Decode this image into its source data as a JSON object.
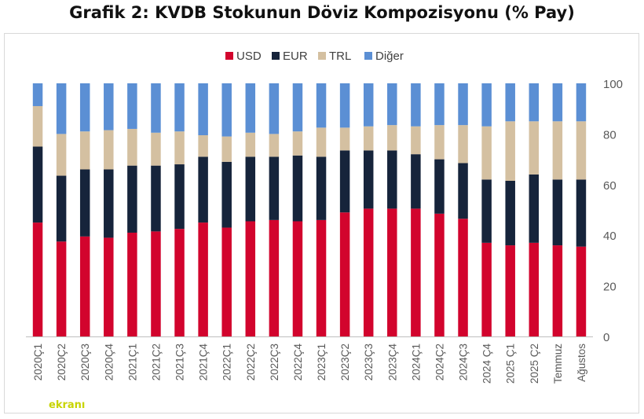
{
  "chart_data": {
    "type": "bar",
    "stacked": true,
    "title": "Grafik 2: KVDB Stokunun Döviz Kompozisyonu (% Pay)",
    "xlabel": "",
    "ylabel": "",
    "ylim": [
      0,
      100
    ],
    "yticks": [
      0,
      20,
      40,
      60,
      80,
      100
    ],
    "legend_position": "top",
    "grid": false,
    "categories": [
      "2020Ç1",
      "2020Ç2",
      "2020Ç3",
      "2020Ç4",
      "2021Ç1",
      "2021Ç2",
      "2021Ç3",
      "2021Ç4",
      "2022Ç1",
      "2022Ç2",
      "2022Ç3",
      "2022Ç4",
      "2023Ç1",
      "2023Ç2",
      "2023Ç3",
      "2023Ç4",
      "2024Ç1",
      "2024Ç2",
      "2024Ç3",
      "2024 Ç4",
      "2025 Ç1",
      "2025 Ç2",
      "Temmuz",
      "Ağustos"
    ],
    "series": [
      {
        "name": "USD",
        "color": "#d2042d",
        "values": [
          45,
          37.5,
          39.5,
          39,
          41,
          41.5,
          42.5,
          45,
          43,
          45.5,
          46,
          45.5,
          46,
          49,
          50.5,
          50.5,
          50.5,
          48.5,
          46.5,
          37,
          36,
          37,
          36,
          35.5
        ]
      },
      {
        "name": "EUR",
        "color": "#16243b",
        "values": [
          30,
          26,
          26.5,
          27,
          26.5,
          26,
          25.5,
          26,
          26,
          25.5,
          25,
          26,
          25,
          24.5,
          23,
          23,
          21.5,
          21.5,
          22,
          25,
          25.5,
          27,
          26,
          26.5
        ]
      },
      {
        "name": "TRL",
        "color": "#d4c0a1",
        "values": [
          16,
          16.5,
          15,
          15.5,
          14.5,
          13,
          13,
          8.5,
          10,
          9.5,
          9,
          9.5,
          11.5,
          9,
          9.5,
          10,
          11,
          13.5,
          15,
          21,
          23.5,
          21,
          23,
          23
        ]
      },
      {
        "name": "Diğer",
        "color": "#5b8fd4",
        "values": [
          9,
          20,
          19,
          18.5,
          18,
          19.5,
          19,
          20.5,
          21,
          19.5,
          20,
          19,
          17.5,
          17.5,
          17,
          16.5,
          17,
          16.5,
          16.5,
          17,
          15,
          15,
          15,
          15
        ]
      }
    ]
  },
  "watermark": {
    "text": "ekranı"
  }
}
